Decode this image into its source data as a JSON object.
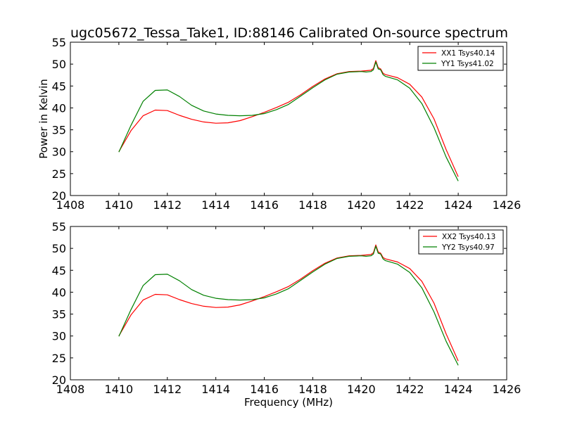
{
  "figure": {
    "title": "ugc05672_Tessa_Take1, ID:88146 Calibrated On-source spectrum",
    "xlabel": "Frequency (MHz)",
    "ylabel": "Power in Kelvin"
  },
  "chart_data": [
    {
      "type": "line",
      "title": "ugc05672_Tessa_Take1, ID:88146 Calibrated On-source spectrum",
      "xlabel": "",
      "ylabel": "Power in Kelvin",
      "xlim": [
        1408,
        1426
      ],
      "ylim": [
        20,
        55
      ],
      "xticks": [
        1408,
        1410,
        1412,
        1414,
        1416,
        1418,
        1420,
        1422,
        1424,
        1426
      ],
      "yticks": [
        20,
        25,
        30,
        35,
        40,
        45,
        50,
        55
      ],
      "legend_position": "top-right",
      "series": [
        {
          "name": "XX1 Tsys40.14",
          "color": "#ff0000",
          "x": [
            1410.0,
            1410.5,
            1411.0,
            1411.5,
            1412.0,
            1412.5,
            1413.0,
            1413.5,
            1414.0,
            1414.5,
            1415.0,
            1415.5,
            1416.0,
            1416.5,
            1417.0,
            1417.5,
            1418.0,
            1418.5,
            1419.0,
            1419.5,
            1420.0,
            1420.2,
            1420.4,
            1420.5,
            1420.6,
            1420.7,
            1420.8,
            1420.9,
            1421.0,
            1421.5,
            1422.0,
            1422.5,
            1423.0,
            1423.5,
            1424.0
          ],
          "y": [
            30.0,
            34.8,
            38.2,
            39.5,
            39.4,
            38.3,
            37.4,
            36.8,
            36.5,
            36.6,
            37.1,
            38.0,
            39.0,
            40.1,
            41.3,
            43.0,
            44.9,
            46.6,
            47.8,
            48.3,
            48.4,
            48.5,
            48.6,
            49.0,
            50.8,
            49.2,
            48.9,
            47.9,
            47.6,
            46.9,
            45.4,
            42.5,
            37.5,
            30.5,
            24.3
          ]
        },
        {
          "name": "YY1 Tsys41.02",
          "color": "#008000",
          "x": [
            1410.0,
            1410.5,
            1411.0,
            1411.5,
            1412.0,
            1412.5,
            1413.0,
            1413.5,
            1414.0,
            1414.5,
            1415.0,
            1415.5,
            1416.0,
            1416.5,
            1417.0,
            1417.5,
            1418.0,
            1418.5,
            1419.0,
            1419.5,
            1420.0,
            1420.2,
            1420.4,
            1420.5,
            1420.6,
            1420.7,
            1420.8,
            1420.9,
            1421.0,
            1421.5,
            1422.0,
            1422.5,
            1423.0,
            1423.5,
            1424.0
          ],
          "y": [
            29.9,
            36.0,
            41.5,
            44.0,
            44.1,
            42.6,
            40.6,
            39.3,
            38.6,
            38.3,
            38.2,
            38.3,
            38.7,
            39.6,
            40.8,
            42.7,
            44.6,
            46.4,
            47.7,
            48.2,
            48.3,
            48.2,
            48.3,
            48.7,
            50.5,
            48.9,
            48.7,
            47.6,
            47.2,
            46.4,
            44.5,
            41.0,
            35.5,
            28.8,
            23.3
          ]
        }
      ]
    },
    {
      "type": "line",
      "title": "",
      "xlabel": "Frequency (MHz)",
      "ylabel": "",
      "xlim": [
        1408,
        1426
      ],
      "ylim": [
        20,
        55
      ],
      "xticks": [
        1408,
        1410,
        1412,
        1414,
        1416,
        1418,
        1420,
        1422,
        1424,
        1426
      ],
      "yticks": [
        20,
        25,
        30,
        35,
        40,
        45,
        50,
        55
      ],
      "legend_position": "top-right",
      "series": [
        {
          "name": "XX2 Tsys40.13",
          "color": "#ff0000",
          "x": [
            1410.0,
            1410.5,
            1411.0,
            1411.5,
            1412.0,
            1412.5,
            1413.0,
            1413.5,
            1414.0,
            1414.5,
            1415.0,
            1415.5,
            1416.0,
            1416.5,
            1417.0,
            1417.5,
            1418.0,
            1418.5,
            1419.0,
            1419.5,
            1420.0,
            1420.2,
            1420.4,
            1420.5,
            1420.6,
            1420.7,
            1420.8,
            1420.9,
            1421.0,
            1421.5,
            1422.0,
            1422.5,
            1423.0,
            1423.5,
            1424.0
          ],
          "y": [
            30.0,
            34.8,
            38.2,
            39.5,
            39.4,
            38.3,
            37.4,
            36.8,
            36.5,
            36.6,
            37.1,
            38.0,
            39.0,
            40.1,
            41.3,
            43.0,
            44.9,
            46.6,
            47.8,
            48.3,
            48.4,
            48.5,
            48.6,
            49.0,
            50.8,
            49.2,
            48.9,
            47.9,
            47.6,
            46.9,
            45.4,
            42.5,
            37.5,
            30.5,
            24.3
          ]
        },
        {
          "name": "YY2 Tsys40.97",
          "color": "#008000",
          "x": [
            1410.0,
            1410.5,
            1411.0,
            1411.5,
            1412.0,
            1412.5,
            1413.0,
            1413.5,
            1414.0,
            1414.5,
            1415.0,
            1415.5,
            1416.0,
            1416.5,
            1417.0,
            1417.5,
            1418.0,
            1418.5,
            1419.0,
            1419.5,
            1420.0,
            1420.2,
            1420.4,
            1420.5,
            1420.6,
            1420.7,
            1420.8,
            1420.9,
            1421.0,
            1421.5,
            1422.0,
            1422.5,
            1423.0,
            1423.5,
            1424.0
          ],
          "y": [
            29.9,
            36.0,
            41.5,
            44.0,
            44.1,
            42.6,
            40.6,
            39.3,
            38.6,
            38.3,
            38.2,
            38.3,
            38.7,
            39.6,
            40.8,
            42.7,
            44.6,
            46.4,
            47.7,
            48.2,
            48.3,
            48.2,
            48.3,
            48.7,
            50.5,
            48.9,
            48.7,
            47.6,
            47.2,
            46.4,
            44.5,
            41.0,
            35.5,
            28.8,
            23.3
          ]
        }
      ]
    }
  ]
}
